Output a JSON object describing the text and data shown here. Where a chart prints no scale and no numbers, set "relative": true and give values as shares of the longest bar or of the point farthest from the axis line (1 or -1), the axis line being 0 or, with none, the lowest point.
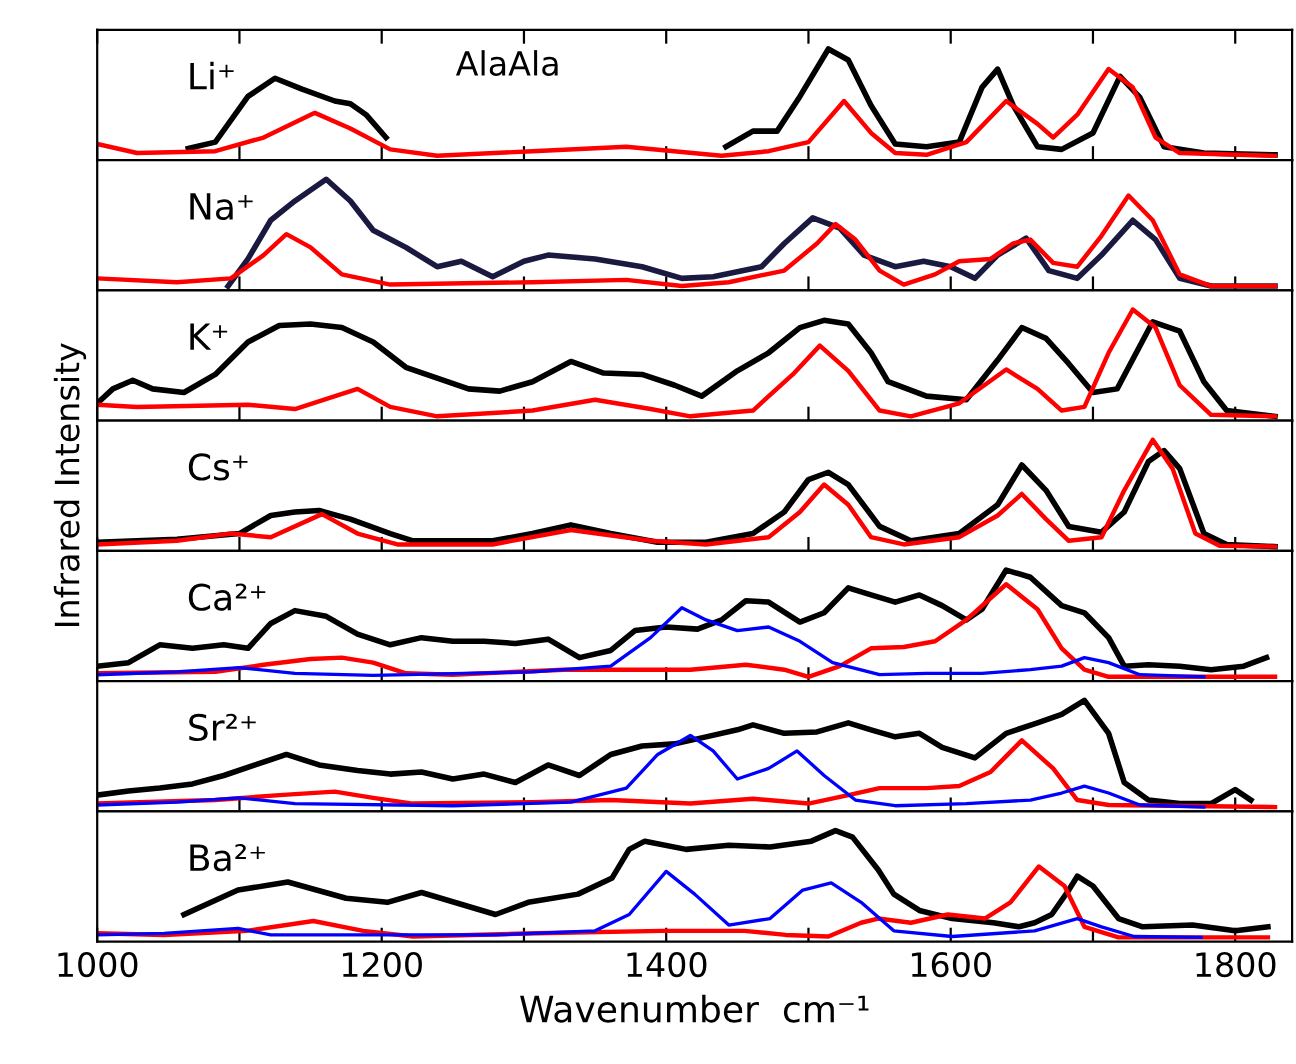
{
  "chart_data": [
    {
      "type": "line",
      "relative": true,
      "title": "Li⁺",
      "annotations": [
        "AlaAla"
      ],
      "xlim": [
        1000,
        1840
      ],
      "xticks": [
        1000,
        {
          "value": 1100,
          "label": null
        },
        1200,
        {
          "value": 1300,
          "label": null
        },
        1400,
        {
          "value": 1500,
          "label": null
        },
        1600,
        {
          "value": 1700,
          "label": null
        },
        1800
      ],
      "tick_labels": false,
      "series": [
        {
          "color": "#000000",
          "x": [
            1064,
            1083,
            1106,
            1125,
            1144,
            1167,
            1178,
            1189,
            1203,
            1300,
            1442,
            1461,
            1478,
            1494,
            1514,
            1528,
            1544,
            1561,
            1583,
            1606,
            1622,
            1633,
            1644,
            1661,
            1678,
            1700,
            1719,
            1733,
            1750,
            1778,
            1828
          ],
          "values": [
            0.068,
            0.128,
            0.556,
            0.726,
            0.624,
            0.513,
            0.487,
            0.385,
            0.171,
            null,
            0.085,
            0.231,
            0.231,
            0.556,
            1.0,
            0.897,
            0.47,
            0.111,
            0.085,
            0.128,
            0.641,
            0.812,
            0.47,
            0.085,
            0.06,
            0.214,
            0.744,
            0.547,
            0.085,
            0.026,
            0.009
          ]
        },
        {
          "color": "#ff0000",
          "x": [
            1000,
            1028,
            1083,
            1117,
            1153,
            1178,
            1206,
            1239,
            1306,
            1372,
            1439,
            1472,
            1500,
            1525,
            1544,
            1561,
            1583,
            1611,
            1639,
            1661,
            1672,
            1689,
            1711,
            1728,
            1744,
            1761,
            1828
          ],
          "values": [
            0.111,
            0.026,
            0.043,
            0.171,
            0.402,
            0.256,
            0.06,
            0,
            0.043,
            0.085,
            0,
            0.043,
            0.128,
            0.513,
            0.214,
            0.026,
            0.009,
            0.128,
            0.513,
            0.299,
            0.171,
            0.385,
            0.812,
            0.641,
            0.171,
            0.026,
            0
          ]
        }
      ]
    },
    {
      "type": "line",
      "relative": true,
      "title": "Na⁺",
      "xlim": [
        1000,
        1840
      ],
      "xticks": [
        1000,
        {
          "value": 1100,
          "label": null
        },
        1200,
        {
          "value": 1300,
          "label": null
        },
        1400,
        {
          "value": 1500,
          "label": null
        },
        1600,
        {
          "value": 1700,
          "label": null
        },
        1800
      ],
      "tick_labels": false,
      "series": [
        {
          "color": "#1a1a40",
          "x": [
            1092,
            1106,
            1122,
            1139,
            1161,
            1178,
            1194,
            1217,
            1239,
            1256,
            1278,
            1300,
            1317,
            1350,
            1383,
            1411,
            1433,
            1467,
            1483,
            1503,
            1522,
            1539,
            1561,
            1581,
            1600,
            1617,
            1633,
            1653,
            1669,
            1689,
            1706,
            1728,
            1744,
            1761,
            1783,
            1828
          ],
          "values": [
            0,
            0.254,
            0.616,
            0.797,
            1.0,
            0.797,
            0.522,
            0.362,
            0.181,
            0.232,
            0.087,
            0.232,
            0.29,
            0.254,
            0.181,
            0.072,
            0.087,
            0.181,
            0.399,
            0.638,
            0.543,
            0.29,
            0.181,
            0.232,
            0.181,
            0.072,
            0.29,
            0.449,
            0.145,
            0.072,
            0.29,
            0.616,
            0.435,
            0.072,
            0,
            0
          ]
        },
        {
          "color": "#ff0000",
          "x": [
            1000,
            1056,
            1094,
            1117,
            1133,
            1150,
            1172,
            1206,
            1306,
            1372,
            1411,
            1444,
            1483,
            1506,
            1519,
            1533,
            1550,
            1567,
            1589,
            1606,
            1628,
            1644,
            1656,
            1672,
            1689,
            1706,
            1725,
            1742,
            1761,
            1783,
            1828
          ],
          "values": [
            0.072,
            0.036,
            0.072,
            0.29,
            0.486,
            0.362,
            0.109,
            0.014,
            0.036,
            0.058,
            0,
            0.036,
            0.145,
            0.399,
            0.58,
            0.435,
            0.145,
            0.014,
            0.109,
            0.232,
            0.254,
            0.399,
            0.435,
            0.217,
            0.181,
            0.471,
            0.848,
            0.616,
            0.109,
            0,
            0
          ]
        }
      ]
    },
    {
      "type": "line",
      "relative": true,
      "title": "K⁺",
      "xlim": [
        1000,
        1840
      ],
      "xticks": [
        1000,
        {
          "value": 1100,
          "label": null
        },
        1200,
        {
          "value": 1300,
          "label": null
        },
        1400,
        {
          "value": 1500,
          "label": null
        },
        1600,
        {
          "value": 1700,
          "label": null
        },
        1800
      ],
      "tick_labels": false,
      "series": [
        {
          "color": "#000000",
          "x": [
            1000,
            1011,
            1025,
            1039,
            1061,
            1083,
            1106,
            1128,
            1150,
            1172,
            1194,
            1217,
            1239,
            1261,
            1283,
            1306,
            1333,
            1356,
            1383,
            1406,
            1425,
            1450,
            1472,
            1494,
            1511,
            1528,
            1544,
            1556,
            1583,
            1611,
            1633,
            1650,
            1667,
            1683,
            1700,
            1717,
            1742,
            1761,
            1778,
            1794,
            1828
          ],
          "values": [
            0.122,
            0.257,
            0.338,
            0.257,
            0.223,
            0.392,
            0.696,
            0.851,
            0.865,
            0.831,
            0.696,
            0.459,
            0.358,
            0.257,
            0.236,
            0.324,
            0.514,
            0.405,
            0.392,
            0.291,
            0.189,
            0.426,
            0.595,
            0.831,
            0.899,
            0.865,
            0.595,
            0.324,
            0.189,
            0.155,
            0.527,
            0.831,
            0.73,
            0.493,
            0.223,
            0.257,
            0.885,
            0.797,
            0.324,
            0.054,
            0
          ]
        },
        {
          "color": "#ff0000",
          "x": [
            1000,
            1028,
            1106,
            1139,
            1183,
            1206,
            1239,
            1306,
            1350,
            1389,
            1417,
            1461,
            1489,
            1508,
            1528,
            1550,
            1572,
            1606,
            1639,
            1661,
            1678,
            1694,
            1711,
            1728,
            1744,
            1761,
            1783,
            1828
          ],
          "values": [
            0.108,
            0.088,
            0.108,
            0.068,
            0.257,
            0.088,
            0,
            0.054,
            0.155,
            0.068,
            0,
            0.054,
            0.392,
            0.662,
            0.426,
            0.054,
            0,
            0.122,
            0.439,
            0.257,
            0.054,
            0.088,
            0.595,
            1.0,
            0.831,
            0.291,
            0.014,
            0
          ]
        }
      ]
    },
    {
      "type": "line",
      "relative": true,
      "title": "Cs⁺",
      "ylabel": "Infrared Intensity",
      "xlim": [
        1000,
        1840
      ],
      "xticks": [
        1000,
        {
          "value": 1100,
          "label": null
        },
        1200,
        {
          "value": 1300,
          "label": null
        },
        1400,
        {
          "value": 1500,
          "label": null
        },
        1600,
        {
          "value": 1700,
          "label": null
        },
        1800
      ],
      "tick_labels": false,
      "series": [
        {
          "color": "#000000",
          "x": [
            1000,
            1056,
            1100,
            1122,
            1139,
            1156,
            1178,
            1206,
            1222,
            1278,
            1306,
            1333,
            1361,
            1394,
            1428,
            1461,
            1483,
            1500,
            1514,
            1528,
            1550,
            1572,
            1606,
            1633,
            1650,
            1667,
            1683,
            1706,
            1722,
            1739,
            1750,
            1761,
            1778,
            1794,
            1828
          ],
          "values": [
            0.041,
            0.068,
            0.122,
            0.291,
            0.324,
            0.338,
            0.257,
            0.122,
            0.054,
            0.054,
            0.122,
            0.203,
            0.122,
            0.041,
            0.041,
            0.122,
            0.324,
            0.628,
            0.696,
            0.581,
            0.189,
            0.054,
            0.122,
            0.392,
            0.764,
            0.527,
            0.189,
            0.135,
            0.324,
            0.797,
            0.899,
            0.73,
            0.122,
            0.02,
            0
          ]
        },
        {
          "color": "#ff0000",
          "x": [
            1000,
            1056,
            1094,
            1122,
            1158,
            1183,
            1211,
            1278,
            1333,
            1389,
            1428,
            1472,
            1494,
            1511,
            1528,
            1544,
            1567,
            1606,
            1633,
            1650,
            1667,
            1683,
            1706,
            1722,
            1742,
            1756,
            1772,
            1789,
            1828
          ],
          "values": [
            0.02,
            0.054,
            0.122,
            0.088,
            0.304,
            0.122,
            0.02,
            0.02,
            0.155,
            0.054,
            0.02,
            0.088,
            0.324,
            0.581,
            0.392,
            0.088,
            0.02,
            0.088,
            0.291,
            0.493,
            0.257,
            0.054,
            0.088,
            0.527,
            1.0,
            0.73,
            0.122,
            0.007,
            0
          ]
        }
      ]
    },
    {
      "type": "line",
      "relative": true,
      "title": "Ca²⁺",
      "xlim": [
        1000,
        1840
      ],
      "xticks": [
        1000,
        {
          "value": 1100,
          "label": null
        },
        1200,
        {
          "value": 1300,
          "label": null
        },
        1400,
        {
          "value": 1500,
          "label": null
        },
        1600,
        {
          "value": 1700,
          "label": null
        },
        1800
      ],
      "tick_labels": false,
      "series": [
        {
          "color": "#000000",
          "x": [
            1000,
            1022,
            1044,
            1067,
            1089,
            1106,
            1122,
            1139,
            1161,
            1183,
            1206,
            1228,
            1250,
            1272,
            1294,
            1317,
            1339,
            1361,
            1378,
            1400,
            1422,
            1439,
            1456,
            1472,
            1494,
            1511,
            1528,
            1544,
            1561,
            1578,
            1594,
            1611,
            1622,
            1639,
            1656,
            1678,
            1694,
            1711,
            1722,
            1739,
            1761,
            1783,
            1806,
            1822
          ],
          "values": [
            0.1,
            0.133,
            0.3,
            0.267,
            0.3,
            0.267,
            0.5,
            0.62,
            0.567,
            0.4,
            0.3,
            0.367,
            0.333,
            0.333,
            0.313,
            0.353,
            0.18,
            0.247,
            0.433,
            0.467,
            0.447,
            0.533,
            0.713,
            0.7,
            0.513,
            0.6,
            0.833,
            0.767,
            0.7,
            0.767,
            0.667,
            0.533,
            0.633,
            1.0,
            0.933,
            0.667,
            0.6,
            0.367,
            0.1,
            0.113,
            0.1,
            0.067,
            0.1,
            0.18
          ]
        },
        {
          "color": "#ff0000",
          "x": [
            1000,
            1083,
            1117,
            1150,
            1172,
            1194,
            1217,
            1250,
            1328,
            1417,
            1456,
            1483,
            1500,
            1522,
            1544,
            1567,
            1589,
            1611,
            1639,
            1661,
            1678,
            1694,
            1711,
            1828
          ],
          "values": [
            0.033,
            0.047,
            0.113,
            0.167,
            0.18,
            0.133,
            0.033,
            0.02,
            0.067,
            0.067,
            0.113,
            0.067,
            0,
            0.1,
            0.267,
            0.28,
            0.333,
            0.533,
            0.867,
            0.633,
            0.267,
            0.067,
            0,
            0
          ]
        },
        {
          "color": "#0000ff",
          "x": [
            1000,
            1056,
            1100,
            1139,
            1194,
            1306,
            1361,
            1389,
            1411,
            1428,
            1450,
            1472,
            1494,
            1517,
            1550,
            1583,
            1622,
            1656,
            1678,
            1694,
            1711,
            1733,
            1778
          ],
          "values": [
            0.02,
            0.047,
            0.087,
            0.033,
            0.013,
            0.047,
            0.1,
            0.367,
            0.647,
            0.533,
            0.433,
            0.467,
            0.333,
            0.133,
            0.02,
            0.033,
            0.033,
            0.067,
            0.1,
            0.18,
            0.133,
            0.02,
            0
          ]
        }
      ]
    },
    {
      "type": "line",
      "relative": true,
      "title": "Sr²⁺",
      "xlim": [
        1000,
        1840
      ],
      "xticks": [
        1000,
        {
          "value": 1100,
          "label": null
        },
        1200,
        {
          "value": 1300,
          "label": null
        },
        1400,
        {
          "value": 1500,
          "label": null
        },
        1600,
        {
          "value": 1700,
          "label": null
        },
        1800
      ],
      "tick_labels": false,
      "series": [
        {
          "color": "#000000",
          "x": [
            1000,
            1022,
            1044,
            1067,
            1089,
            1111,
            1133,
            1156,
            1183,
            1206,
            1228,
            1250,
            1272,
            1294,
            1317,
            1339,
            1361,
            1383,
            1406,
            1428,
            1450,
            1461,
            1483,
            1506,
            1528,
            1544,
            1561,
            1578,
            1594,
            1617,
            1639,
            1661,
            1678,
            1694,
            1711,
            1722,
            1739,
            1761,
            1783,
            1800,
            1811
          ],
          "values": [
            0.112,
            0.151,
            0.178,
            0.217,
            0.296,
            0.395,
            0.493,
            0.395,
            0.342,
            0.309,
            0.329,
            0.263,
            0.309,
            0.23,
            0.395,
            0.296,
            0.493,
            0.572,
            0.592,
            0.658,
            0.724,
            0.77,
            0.691,
            0.704,
            0.789,
            0.724,
            0.658,
            0.691,
            0.559,
            0.461,
            0.691,
            0.789,
            0.868,
            1.0,
            0.691,
            0.23,
            0.066,
            0.033,
            0.033,
            0.164,
            0.066
          ]
        },
        {
          "color": "#ff0000",
          "x": [
            1000,
            1083,
            1128,
            1167,
            1194,
            1222,
            1306,
            1361,
            1417,
            1461,
            1500,
            1528,
            1550,
            1583,
            1606,
            1628,
            1650,
            1672,
            1689,
            1711,
            1828
          ],
          "values": [
            0.033,
            0.066,
            0.112,
            0.145,
            0.086,
            0.033,
            0.046,
            0.066,
            0.033,
            0.079,
            0.033,
            0.112,
            0.178,
            0.178,
            0.197,
            0.329,
            0.625,
            0.362,
            0.066,
            0.02,
            0
          ]
        },
        {
          "color": "#0000ff",
          "x": [
            1000,
            1056,
            1100,
            1139,
            1250,
            1333,
            1372,
            1394,
            1417,
            1433,
            1450,
            1472,
            1492,
            1511,
            1533,
            1561,
            1611,
            1656,
            1678,
            1694,
            1711,
            1733,
            1778
          ],
          "values": [
            0.02,
            0.046,
            0.086,
            0.033,
            0.013,
            0.046,
            0.178,
            0.493,
            0.671,
            0.526,
            0.263,
            0.362,
            0.526,
            0.296,
            0.066,
            0.013,
            0.033,
            0.066,
            0.132,
            0.197,
            0.132,
            0.02,
            0
          ]
        }
      ]
    },
    {
      "type": "line",
      "relative": true,
      "title": "Ba²⁺",
      "xlabel": "Wavenumber  cm⁻¹",
      "xlim": [
        1000,
        1840
      ],
      "xticks": [
        1000,
        {
          "value": 1100,
          "label": null
        },
        1200,
        {
          "value": 1300,
          "label": null
        },
        1400,
        {
          "value": 1500,
          "label": null
        },
        1600,
        {
          "value": 1700,
          "label": null
        },
        1800
      ],
      "tick_labels": "x",
      "series": [
        {
          "color": "#000000",
          "x": [
            1061,
            1099,
            1134,
            1175,
            1204,
            1228,
            1280,
            1303,
            1338,
            1362,
            1374,
            1385,
            1414,
            1444,
            1473,
            1502,
            1519,
            1531,
            1549,
            1560,
            1578,
            1601,
            1630,
            1648,
            1659,
            1671,
            1683,
            1689,
            1700,
            1718,
            1735,
            1770,
            1800,
            1823
          ],
          "values": [
            0.214,
            0.443,
            0.519,
            0.366,
            0.328,
            0.42,
            0.214,
            0.328,
            0.405,
            0.557,
            0.824,
            0.901,
            0.824,
            0.863,
            0.847,
            0.901,
            1.0,
            0.939,
            0.634,
            0.405,
            0.252,
            0.176,
            0.137,
            0.099,
            0.137,
            0.214,
            0.443,
            0.573,
            0.481,
            0.176,
            0.099,
            0.115,
            0.061,
            0.099
          ]
        },
        {
          "color": "#ff0000",
          "x": [
            1000,
            1047,
            1105,
            1152,
            1187,
            1222,
            1309,
            1397,
            1455,
            1484,
            1514,
            1537,
            1549,
            1572,
            1598,
            1624,
            1642,
            1662,
            1680,
            1694,
            1718,
            1823
          ],
          "values": [
            0.038,
            0.023,
            0.061,
            0.153,
            0.061,
            0.008,
            0.038,
            0.061,
            0.061,
            0.023,
            0.008,
            0.137,
            0.176,
            0.137,
            0.214,
            0.176,
            0.328,
            0.664,
            0.481,
            0.099,
            0,
            0
          ]
        },
        {
          "color": "#0000ff",
          "x": [
            1000,
            1047,
            1099,
            1122,
            1280,
            1350,
            1374,
            1400,
            1420,
            1444,
            1473,
            1496,
            1516,
            1537,
            1560,
            1601,
            1659,
            1689,
            1706,
            1729,
            1776
          ],
          "values": [
            0.023,
            0.038,
            0.084,
            0.023,
            0.023,
            0.061,
            0.214,
            0.618,
            0.405,
            0.115,
            0.176,
            0.443,
            0.511,
            0.328,
            0.061,
            0.008,
            0.061,
            0.176,
            0.099,
            0.008,
            0
          ]
        }
      ]
    }
  ]
}
